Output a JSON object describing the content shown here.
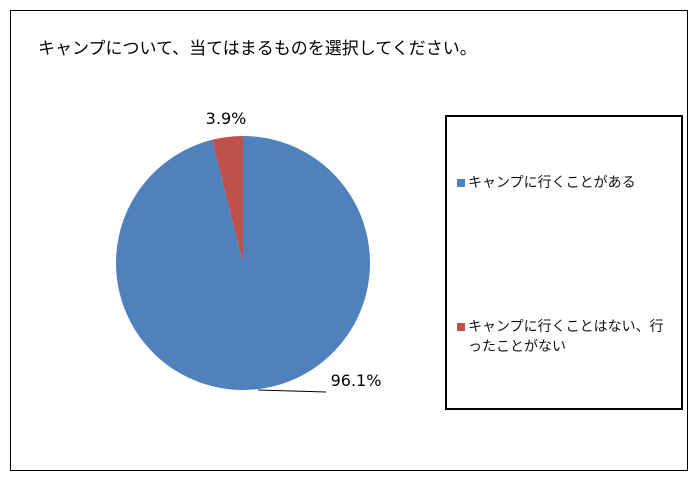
{
  "chart_data": {
    "type": "pie",
    "title": "キャンプについて、当てはまるものを選択してください。",
    "categories": [
      "キャンプに行くことがある",
      "キャンプに行くことはない、行ったことがない"
    ],
    "values": [
      96.1,
      3.9
    ],
    "data_labels": [
      "96.1%",
      "3.9%"
    ],
    "colors": [
      "#4F81BD",
      "#C0504D"
    ],
    "legend": "right"
  }
}
